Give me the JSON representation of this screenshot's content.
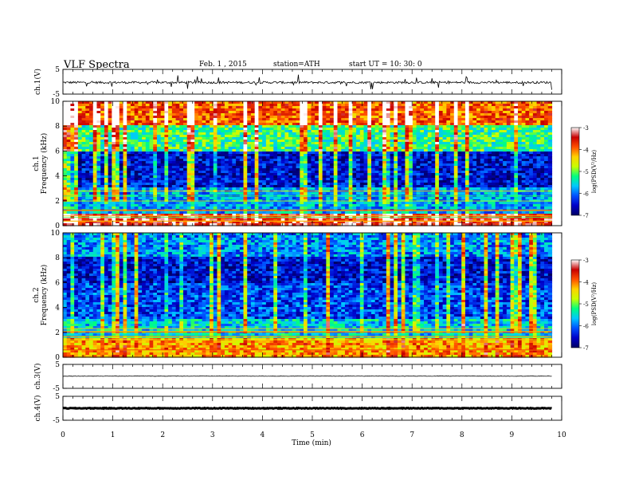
{
  "header": {
    "title": "VLF  Spectra",
    "date": "Feb. 1  , 2015",
    "station": "station=ATH",
    "start": "start  UT  =    10: 30: 0"
  },
  "chart_data": {
    "type": "heatmap",
    "xlabel": "Time  (min)",
    "xlim": [
      0,
      10
    ],
    "xticks": [
      "0",
      "1",
      "2",
      "3",
      "4",
      "5",
      "6",
      "7",
      "8",
      "9",
      "10"
    ],
    "data_end_min": 9.8,
    "panels": [
      {
        "id": "ch1-waveform",
        "kind": "waveform",
        "ylabel": "ch.1(V)",
        "ylim": [
          -5,
          5
        ],
        "yticks": [
          "5",
          "-5"
        ],
        "level": -0.3,
        "noise": 0.45,
        "spikes": true,
        "color": "#000000"
      },
      {
        "id": "ch1-spectrogram",
        "kind": "spectrogram",
        "ylabel_lines": [
          "ch.1",
          "Frequency  (kHz)"
        ],
        "ylim": [
          0,
          10
        ],
        "yticks": [
          "0",
          "2",
          "4",
          "6",
          "8",
          "10"
        ],
        "layers": [
          {
            "from_khz": 0,
            "to_khz": 1,
            "log_psd": -3.5
          },
          {
            "from_khz": 1,
            "to_khz": 3,
            "log_psd": -5.8
          },
          {
            "from_khz": 3,
            "to_khz": 6,
            "log_psd": -6.5
          },
          {
            "from_khz": 6,
            "to_khz": 8,
            "log_psd": -5.2
          },
          {
            "from_khz": 8,
            "to_khz": 10,
            "log_psd": -3.9
          }
        ]
      },
      {
        "id": "ch2-spectrogram",
        "kind": "spectrogram",
        "ylabel_lines": [
          "ch.2",
          "Frequency  (kHz)"
        ],
        "ylim": [
          0,
          10
        ],
        "yticks": [
          "0",
          "2",
          "4",
          "6",
          "8",
          "10"
        ],
        "layers": [
          {
            "from_khz": 0,
            "to_khz": 1.5,
            "log_psd": -4.2
          },
          {
            "from_khz": 1.5,
            "to_khz": 3,
            "log_psd": -5.6
          },
          {
            "from_khz": 3,
            "to_khz": 6,
            "log_psd": -6.2
          },
          {
            "from_khz": 6,
            "to_khz": 8,
            "log_psd": -6.5
          },
          {
            "from_khz": 8,
            "to_khz": 10,
            "log_psd": -5.9
          }
        ]
      },
      {
        "id": "ch3-waveform",
        "kind": "waveform",
        "ylabel": "ch.3(V)",
        "ylim": [
          -5,
          5
        ],
        "yticks": [
          "5",
          "-5"
        ],
        "level": 0.1,
        "noise": 0.08,
        "spikes": false,
        "color": "#000000"
      },
      {
        "id": "ch4-waveform",
        "kind": "waveform",
        "ylabel": "ch.4(V)",
        "ylim": [
          -5,
          5
        ],
        "yticks": [
          "5",
          "-5"
        ],
        "level": 0,
        "noise": 0.15,
        "spikes": false,
        "color": "#000000"
      }
    ],
    "colorbar": {
      "label": "log(PSD(V²/Hz)",
      "range": [
        -7,
        -3
      ],
      "ticks": [
        "-3",
        "-4",
        "-5",
        "-6",
        "-7"
      ],
      "colors": [
        "#000064",
        "#0000c8",
        "#0050ff",
        "#00c8ff",
        "#00ff80",
        "#c8ff00",
        "#ffd200",
        "#ff5000",
        "#c80000",
        "#ffffff"
      ]
    },
    "grid": false
  }
}
